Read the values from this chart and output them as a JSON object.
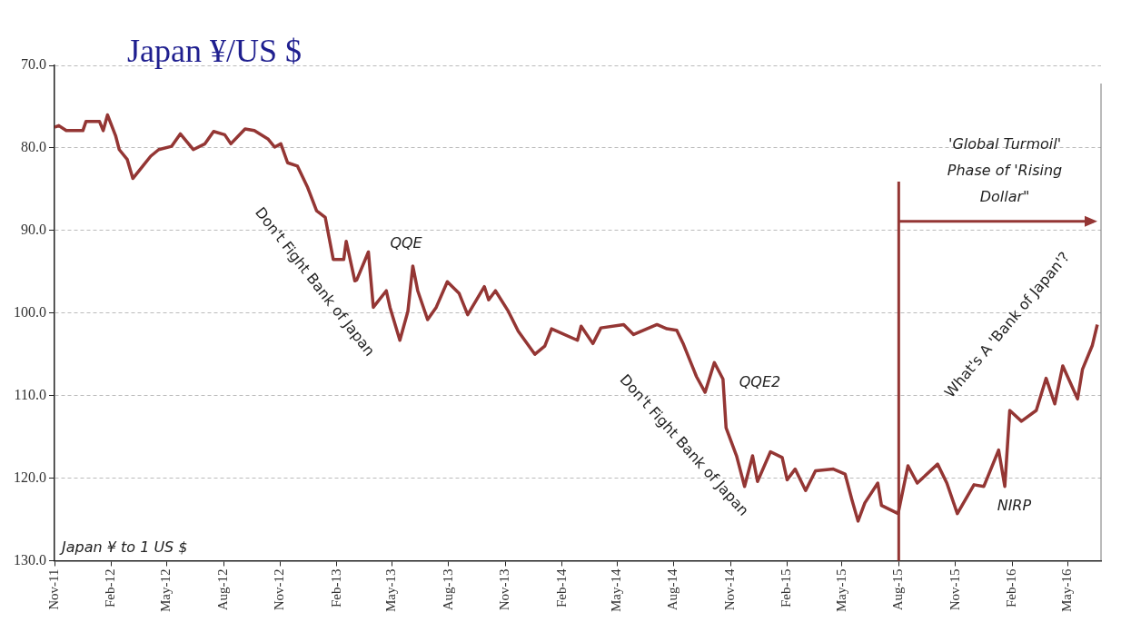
{
  "chart_data": {
    "type": "line",
    "title": "Japan ¥/US $",
    "x": [
      "2011-11-01",
      "2011-11-08",
      "2011-11-20",
      "2011-12-17",
      "2011-12-22",
      "2012-01-13",
      "2012-01-19",
      "2012-01-26",
      "2012-02-08",
      "2012-02-14",
      "2012-02-27",
      "2012-03-07",
      "2012-03-22",
      "2012-04-05",
      "2012-04-18",
      "2012-05-09",
      "2012-05-23",
      "2012-06-13",
      "2012-07-02",
      "2012-07-16",
      "2012-08-03",
      "2012-08-13",
      "2012-09-05",
      "2012-09-20",
      "2012-10-12",
      "2012-10-23",
      "2012-11-02",
      "2012-11-13",
      "2012-11-29",
      "2012-12-15",
      "2012-12-30",
      "2013-01-13",
      "2013-01-26",
      "2013-02-12",
      "2013-02-16",
      "2013-03-02",
      "2013-03-05",
      "2013-03-24",
      "2013-04-01",
      "2013-04-22",
      "2013-04-28",
      "2013-05-14",
      "2013-05-27",
      "2013-06-04",
      "2013-06-12",
      "2013-06-28",
      "2013-07-12",
      "2013-07-30",
      "2013-08-18",
      "2013-09-01",
      "2013-09-28",
      "2013-10-05",
      "2013-10-16",
      "2013-11-06",
      "2013-11-22",
      "2013-12-19",
      "2014-01-04",
      "2014-01-15",
      "2014-02-26",
      "2014-03-04",
      "2014-03-23",
      "2014-04-05",
      "2014-05-12",
      "2014-05-28",
      "2014-07-05",
      "2014-07-21",
      "2014-08-06",
      "2014-08-17",
      "2014-09-07",
      "2014-09-21",
      "2014-10-06",
      "2014-10-20",
      "2014-10-25",
      "2014-11-11",
      "2014-11-24",
      "2014-12-07",
      "2014-12-15",
      "2015-01-05",
      "2015-01-24",
      "2015-02-01",
      "2015-02-14",
      "2015-03-03",
      "2015-03-19",
      "2015-04-17",
      "2015-05-06",
      "2015-05-17",
      "2015-05-27",
      "2015-06-07",
      "2015-06-28",
      "2015-07-04",
      "2015-07-31",
      "2015-08-16",
      "2015-08-31",
      "2015-10-03",
      "2015-10-18",
      "2015-11-04",
      "2015-12-01",
      "2015-12-17",
      "2016-01-10",
      "2016-01-20",
      "2016-01-28",
      "2016-02-16",
      "2016-03-11",
      "2016-03-27",
      "2016-04-10",
      "2016-04-23",
      "2016-05-17",
      "2016-05-25",
      "2016-06-10",
      "2016-06-18"
    ],
    "series": [
      {
        "color": "#943634",
        "values": [
          77.5,
          77.3,
          77.9,
          77.9,
          76.8,
          76.8,
          77.9,
          76.0,
          78.5,
          80.2,
          81.4,
          83.7,
          82.3,
          81.0,
          80.2,
          79.8,
          78.3,
          80.2,
          79.5,
          78.0,
          78.4,
          79.5,
          77.7,
          77.9,
          78.9,
          79.9,
          79.5,
          81.8,
          82.2,
          84.7,
          87.6,
          88.4,
          93.5,
          93.5,
          91.3,
          96.1,
          96.0,
          92.6,
          99.3,
          97.3,
          99.3,
          103.3,
          99.8,
          94.3,
          97.3,
          100.8,
          99.3,
          96.2,
          97.6,
          100.2,
          96.8,
          98.4,
          97.3,
          99.8,
          102.2,
          105.0,
          104.0,
          101.9,
          103.3,
          101.6,
          103.7,
          101.8,
          101.4,
          102.6,
          101.4,
          101.9,
          102.1,
          103.8,
          107.7,
          109.6,
          106.0,
          108.0,
          113.9,
          117.3,
          121.0,
          117.3,
          120.4,
          116.8,
          117.5,
          120.2,
          118.9,
          121.5,
          119.1,
          118.9,
          119.5,
          122.6,
          125.2,
          123.0,
          120.6,
          123.3,
          124.3,
          118.5,
          120.6,
          118.3,
          120.6,
          124.3,
          120.8,
          121.0,
          116.6,
          121.0,
          111.8,
          113.1,
          111.8,
          107.9,
          111.0,
          106.4,
          110.4,
          106.8,
          103.9,
          101.4
        ]
      }
    ],
    "xlim": [
      "2011-11-01",
      "2016-06-24"
    ],
    "xticks": [
      {
        "value": "2011-11-01",
        "label": "Nov-11"
      },
      {
        "value": "2012-02-01",
        "label": "Feb-12"
      },
      {
        "value": "2012-05-01",
        "label": "May-12"
      },
      {
        "value": "2012-08-01",
        "label": "Aug-12"
      },
      {
        "value": "2012-11-01",
        "label": "Nov-12"
      },
      {
        "value": "2013-02-01",
        "label": "Feb-13"
      },
      {
        "value": "2013-05-01",
        "label": "May-13"
      },
      {
        "value": "2013-08-01",
        "label": "Aug-13"
      },
      {
        "value": "2013-11-01",
        "label": "Nov-13"
      },
      {
        "value": "2014-02-01",
        "label": "Feb-14"
      },
      {
        "value": "2014-05-01",
        "label": "May-14"
      },
      {
        "value": "2014-08-01",
        "label": "Aug-14"
      },
      {
        "value": "2014-11-01",
        "label": "Nov-14"
      },
      {
        "value": "2015-02-01",
        "label": "Feb-15"
      },
      {
        "value": "2015-05-01",
        "label": "May-15"
      },
      {
        "value": "2015-08-01",
        "label": "Aug-15"
      },
      {
        "value": "2015-11-01",
        "label": "Nov-15"
      },
      {
        "value": "2016-02-01",
        "label": "Feb-16"
      },
      {
        "value": "2016-05-01",
        "label": "May-16"
      }
    ],
    "ylim": [
      130,
      70
    ],
    "yticks": [
      {
        "value": 70,
        "label": "70.0"
      },
      {
        "value": 80,
        "label": "80.0"
      },
      {
        "value": 90,
        "label": "90.0"
      },
      {
        "value": 100,
        "label": "100.0"
      },
      {
        "value": 110,
        "label": "110.0"
      },
      {
        "value": 120,
        "label": "120.0"
      },
      {
        "value": 130,
        "label": "130.0"
      }
    ],
    "grid": "y",
    "legend": false,
    "marker": "none",
    "line_style": "solid",
    "ref_lines": [
      {
        "axis": "x",
        "value": "2015-08-01",
        "label": null,
        "color": "#943634"
      }
    ],
    "annotations": [
      "Japan ¥ to 1 US $",
      "Don't Fight Bank of Japan",
      "QQE",
      "Don't Fight Bank of Japan",
      "QQE2",
      "NIRP",
      "What's A 'Bank of Japan'?",
      "'Global Turmoil' Phase of 'Rising Dollar\""
    ]
  }
}
